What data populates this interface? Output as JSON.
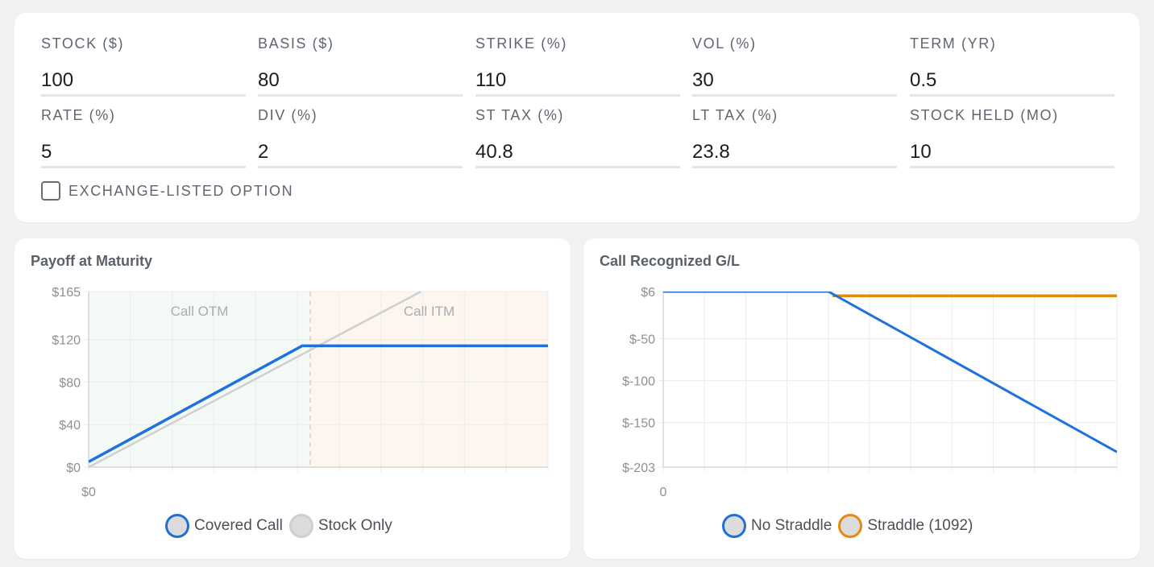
{
  "inputs": {
    "fields": [
      {
        "label": "STOCK ($)",
        "value": "100"
      },
      {
        "label": "BASIS ($)",
        "value": "80"
      },
      {
        "label": "STRIKE (%)",
        "value": "110"
      },
      {
        "label": "VOL (%)",
        "value": "30"
      },
      {
        "label": "TERM (YR)",
        "value": "0.5"
      },
      {
        "label": "RATE (%)",
        "value": "5"
      },
      {
        "label": "DIV (%)",
        "value": "2"
      },
      {
        "label": "ST TAX (%)",
        "value": "40.8"
      },
      {
        "label": "LT TAX (%)",
        "value": "23.8"
      },
      {
        "label": "STOCK HELD (MO)",
        "value": "10"
      }
    ],
    "exchange_listed": {
      "label": "EXCHANGE-LISTED OPTION",
      "checked": false
    }
  },
  "payoff": {
    "title": "Payoff at Maturity",
    "regions": [
      "Call OTM",
      "Call ITM"
    ],
    "legend": [
      {
        "label": "Covered Call",
        "ring": "#1f6fd6"
      },
      {
        "label": "Stock Only",
        "ring": "#cfcfcf"
      }
    ]
  },
  "gl": {
    "title": "Call Recognized G/L",
    "legend": [
      {
        "label": "No Straddle",
        "ring": "#1f6fd6"
      },
      {
        "label": "Straddle (1092)",
        "ring": "#e58a10"
      }
    ]
  },
  "colors": {
    "covered_call": "#2070dd",
    "stock_only": "#cfcfcf",
    "straddle": "#e8890c",
    "otm_fill": "#f3f9f4",
    "itm_fill": "#fcf6ee"
  },
  "chart_data": [
    {
      "type": "line",
      "title": "Payoff at Maturity",
      "xlabel": "",
      "ylabel": "",
      "xlim": [
        0,
        228
      ],
      "ylim": [
        0,
        165
      ],
      "x_tick_labels": [
        "$0"
      ],
      "y_ticks": [
        {
          "value": 0,
          "label": "$0"
        },
        {
          "value": 40,
          "label": "$40"
        },
        {
          "value": 80,
          "label": "$80"
        },
        {
          "value": 120,
          "label": "$120"
        },
        {
          "value": 165,
          "label": "$165"
        }
      ],
      "strike": 110,
      "regions": [
        {
          "label": "Call OTM",
          "from": 0,
          "to": 110
        },
        {
          "label": "Call ITM",
          "from": 110,
          "to": 228
        }
      ],
      "series": [
        {
          "name": "Covered Call",
          "x": [
            0,
            106,
            228
          ],
          "y": [
            5,
            114,
            114
          ]
        },
        {
          "name": "Stock Only",
          "x": [
            0,
            165
          ],
          "y": [
            0,
            165
          ]
        }
      ],
      "grid": true,
      "legend": "bottom"
    },
    {
      "type": "line",
      "title": "Call Recognized G/L",
      "xlabel": "",
      "ylabel": "",
      "xlim": [
        0,
        228
      ],
      "ylim": [
        -203,
        6
      ],
      "x_tick_labels": [
        "0"
      ],
      "y_ticks": [
        {
          "value": 6,
          "label": "$6"
        },
        {
          "value": -50,
          "label": "$-50"
        },
        {
          "value": -100,
          "label": "$-100"
        },
        {
          "value": -150,
          "label": "$-150"
        },
        {
          "value": -203,
          "label": "$-203"
        }
      ],
      "series": [
        {
          "name": "No Straddle",
          "x": [
            0,
            83,
            228
          ],
          "y": [
            6,
            6,
            -185
          ]
        },
        {
          "name": "Straddle (1092)",
          "x": [
            85,
            228
          ],
          "y": [
            1,
            1
          ]
        }
      ],
      "grid": true,
      "legend": "bottom"
    }
  ]
}
